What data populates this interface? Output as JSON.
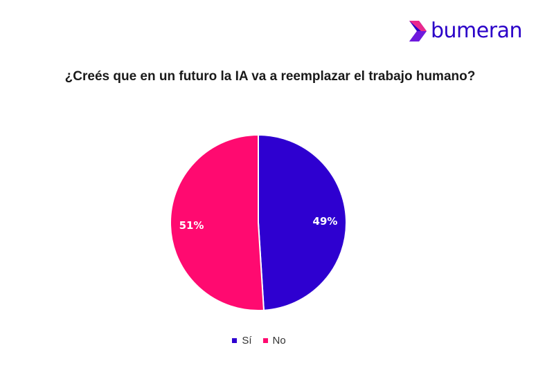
{
  "brand": {
    "name": "bumeran",
    "logo_icon": "bumeran-chevron-logo",
    "color": "#2a00c8",
    "icon_colors": [
      "#2a00c8",
      "#ff2d86",
      "#8a2be2"
    ]
  },
  "chart_data": {
    "type": "pie",
    "title": "¿Creés que en un futuro la IA va a reemplazar el trabajo humano?",
    "legend_position": "bottom",
    "slices": [
      {
        "label": "Sí",
        "value": 49,
        "display": "49%",
        "color": "#2e00d0"
      },
      {
        "label": "No",
        "value": 51,
        "display": "51%",
        "color": "#ff0a70"
      }
    ]
  }
}
